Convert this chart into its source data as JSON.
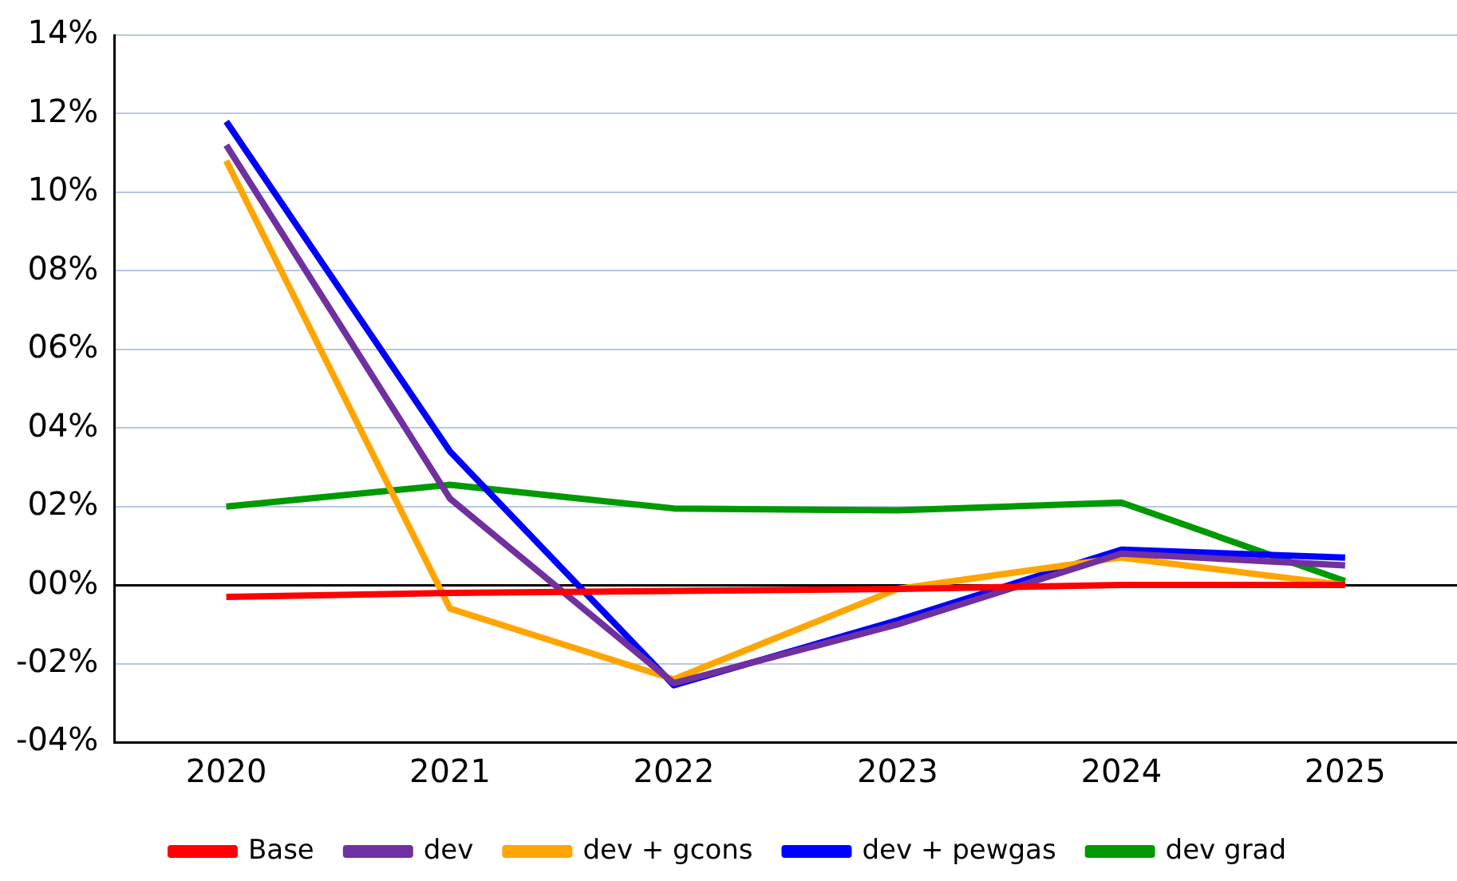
{
  "chart_data": {
    "type": "line",
    "categories": [
      "2020",
      "2021",
      "2022",
      "2023",
      "2024",
      "2025"
    ],
    "series": [
      {
        "name": "Base",
        "color": "#ff0000",
        "values": [
          -0.3,
          -0.2,
          -0.15,
          -0.1,
          0,
          0
        ]
      },
      {
        "name": "dev",
        "color": "#7030a0",
        "values": [
          11.2,
          2.2,
          -2.5,
          -1.0,
          0.8,
          0.5
        ]
      },
      {
        "name": "dev + gcons",
        "color": "#ffa500",
        "values": [
          10.8,
          -0.6,
          -2.4,
          -0.1,
          0.7,
          0
        ]
      },
      {
        "name": "dev + pewgas",
        "color": "#0000ff",
        "values": [
          11.8,
          3.4,
          -2.55,
          -0.9,
          0.9,
          0.7
        ]
      },
      {
        "name": "dev grad",
        "color": "#009900",
        "values": [
          2.0,
          2.55,
          1.95,
          1.9,
          2.1,
          0.1
        ]
      }
    ],
    "ylim": [
      -4,
      14
    ],
    "yticks": [
      {
        "value": -4,
        "label": "-04%"
      },
      {
        "value": -2,
        "label": "-02%"
      },
      {
        "value": 0,
        "label": "00%"
      },
      {
        "value": 2,
        "label": "02%"
      },
      {
        "value": 4,
        "label": "04%"
      },
      {
        "value": 6,
        "label": "06%"
      },
      {
        "value": 8,
        "label": "08%"
      },
      {
        "value": 10,
        "label": "10%"
      },
      {
        "value": 12,
        "label": "12%"
      },
      {
        "value": 14,
        "label": "14%"
      }
    ],
    "grid": "y",
    "legend": "bottom",
    "marker": "none",
    "line_style": "solid"
  }
}
